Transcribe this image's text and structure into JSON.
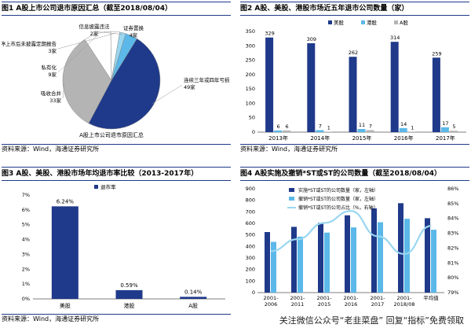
{
  "colors": {
    "navy": "#1f3a8a",
    "light_blue": "#5bb8e8",
    "gray": "#b4b4b4",
    "cyan": "#9ad7f0",
    "white": "#ffffff"
  },
  "fig1": {
    "title": "图1 A股上市公司退市原因汇总（截至2018/08/04）",
    "source": "资料来源：Wind，海通证券研究所",
    "chart_data": {
      "type": "pie",
      "title": "A股上市公司退市原因汇总",
      "slices": [
        {
          "label": "连续三年或四年亏损",
          "value": 49
        },
        {
          "label": "吸收合并",
          "value": 33
        },
        {
          "label": "私有化",
          "value": 9
        },
        {
          "label": "暂停上市后未披露定期报告",
          "value": 3
        },
        {
          "label": "信息披露违法",
          "value": 2
        },
        {
          "label": "证券置换",
          "value": 4
        }
      ],
      "value_labels": [
        "49家",
        "33家",
        "9家",
        "3家",
        "2家",
        "4家"
      ]
    }
  },
  "fig2": {
    "title": "图2 A股、美股、港股市场近五年退市公司数量（家）",
    "source": "资料来源：Wind，海通证券研究所",
    "chart_data": {
      "type": "bar",
      "categories": [
        "2013年",
        "2014年",
        "2015年",
        "2016年",
        "2017年"
      ],
      "series": [
        {
          "name": "美股",
          "values": [
            329,
            309,
            262,
            314,
            259
          ]
        },
        {
          "name": "港股",
          "values": [
            6,
            7,
            11,
            14,
            17
          ]
        },
        {
          "name": "A股",
          "values": [
            6,
            1,
            7,
            1,
            5
          ]
        }
      ],
      "ylim": [
        0,
        350
      ]
    }
  },
  "fig3": {
    "title": "图3 A股、美股、港股市场年均退市率比较（2013-2017年）",
    "source": "资料来源：Wind，海通证券研究所",
    "chart_data": {
      "type": "bar",
      "categories": [
        "美股",
        "港股",
        "A股"
      ],
      "series": [
        {
          "name": "退市率",
          "values": [
            6.24,
            0.59,
            0.14
          ]
        }
      ],
      "value_labels": [
        "6.24%",
        "0.59%",
        "0.14%"
      ],
      "yticks": [
        "0%",
        "1%",
        "2%",
        "3%",
        "4%",
        "5%",
        "6%",
        "7%"
      ],
      "ylim": [
        0,
        7
      ]
    }
  },
  "fig4": {
    "title": "图4 A股实施及撤销*ST或ST的公司数量（截至2018/08/04）",
    "chart_data": {
      "type": "bar",
      "categories": [
        "2001-2006",
        "2001-2011",
        "2001-2015",
        "2001-2016",
        "2001-2017",
        "2001-2018/08",
        "平均值"
      ],
      "series": [
        {
          "name": "实施*ST或ST的公司数量（家，左轴）",
          "values": [
            525,
            570,
            605,
            670,
            730,
            775,
            645
          ]
        },
        {
          "name": "撤销*ST或ST的公司数量（家，左轴）",
          "values": [
            440,
            485,
            520,
            565,
            610,
            640,
            545
          ]
        },
        {
          "name": "撤销*ST或ST的公司占比（%，右轴）",
          "values": [
            81.8,
            82.6,
            83.7,
            84.5,
            82.8,
            81.6,
            83.5
          ]
        }
      ],
      "y_left": {
        "ticks": [
          "0",
          "100",
          "200",
          "300",
          "400",
          "500",
          "600",
          "700",
          "800",
          "900"
        ],
        "lim": [
          0,
          900
        ]
      },
      "y_right": {
        "ticks": [
          "79%",
          "80%",
          "81%",
          "82%",
          "83%",
          "84%",
          "85%",
          "86%"
        ],
        "lim": [
          79,
          86
        ]
      }
    }
  },
  "watermark": "关注微信公众号“老韭菜盘” 回复“指标”免费领取"
}
